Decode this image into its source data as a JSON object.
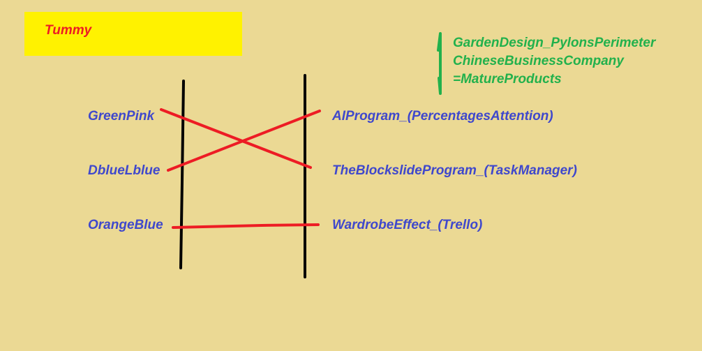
{
  "title": "Tummy",
  "note_lines": [
    "GardenDesign_PylonsPerimeter",
    "ChineseBusinessCompany",
    "=MatureProducts"
  ],
  "left_labels": [
    "GreenPink",
    "DblueLblue",
    "OrangeBlue"
  ],
  "right_labels": [
    "AIProgram_(PercentagesAttention)",
    "TheBlockslideProgram_(TaskManager)",
    "WardrobeEffect_(Trello)"
  ],
  "connections": [
    {
      "from": "GreenPink",
      "to": "TheBlockslideProgram_(TaskManager)"
    },
    {
      "from": "DblueLblue",
      "to": "AIProgram_(PercentagesAttention)"
    },
    {
      "from": "OrangeBlue",
      "to": "WardrobeEffect_(Trello)"
    }
  ],
  "colors": {
    "background": "#EBD994",
    "title_box": "#FFF200",
    "title_text": "#ED1C24",
    "note_text": "#22B14C",
    "labels": "#3F48CC",
    "connector_lines": "#ED1C24",
    "vertical_lines": "#000000"
  }
}
